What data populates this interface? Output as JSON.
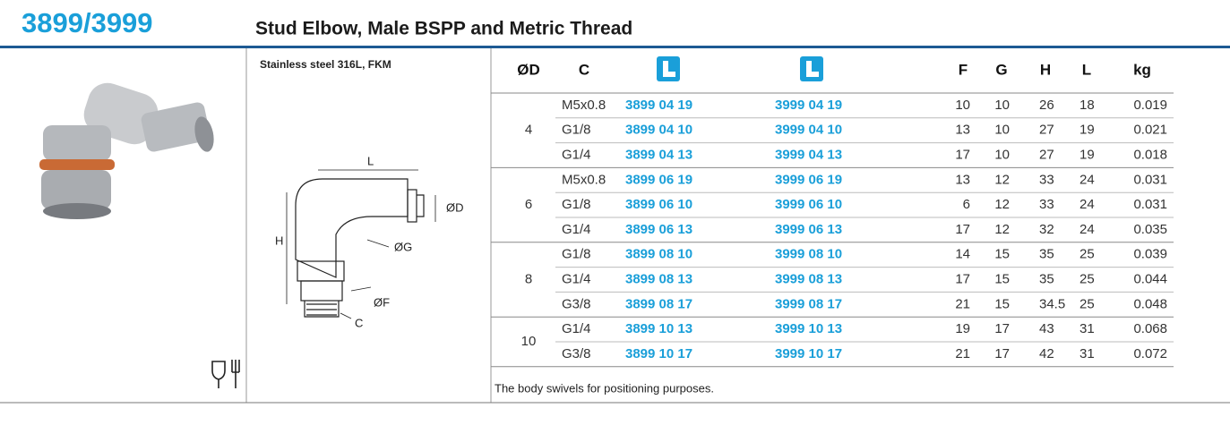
{
  "header": {
    "title": "3899/3999",
    "subtitle": "Stud Elbow, Male BSPP and Metric Thread"
  },
  "material": "Stainless steel 316L, FKM",
  "diagram": {
    "l": "L",
    "d": "ØD",
    "h": "H",
    "g": "ØG",
    "f": "ØF",
    "c": "C"
  },
  "table": {
    "columns": [
      "ØD",
      "C",
      "F",
      "G",
      "H",
      "L",
      "kg"
    ],
    "groups": [
      {
        "od": "4",
        "rows": [
          [
            "M5x0.8",
            "3899 04 19",
            "3999 04 19",
            "10",
            "10",
            "26",
            "18",
            "0.019"
          ],
          [
            "G1/8",
            "3899 04 10",
            "3999 04 10",
            "13",
            "10",
            "27",
            "19",
            "0.021"
          ],
          [
            "G1/4",
            "3899 04 13",
            "3999 04 13",
            "17",
            "10",
            "27",
            "19",
            "0.018"
          ]
        ]
      },
      {
        "od": "6",
        "rows": [
          [
            "M5x0.8",
            "3899 06 19",
            "3999 06 19",
            "13",
            "12",
            "33",
            "24",
            "0.031"
          ],
          [
            "G1/8",
            "3899 06 10",
            "3999 06 10",
            "6",
            "12",
            "33",
            "24",
            "0.031"
          ],
          [
            "G1/4",
            "3899 06 13",
            "3999 06 13",
            "17",
            "12",
            "32",
            "24",
            "0.035"
          ]
        ]
      },
      {
        "od": "8",
        "rows": [
          [
            "G1/8",
            "3899 08 10",
            "3999 08 10",
            "14",
            "15",
            "35",
            "25",
            "0.039"
          ],
          [
            "G1/4",
            "3899 08 13",
            "3999 08 13",
            "17",
            "15",
            "35",
            "25",
            "0.044"
          ],
          [
            "G3/8",
            "3899 08 17",
            "3999 08 17",
            "21",
            "15",
            "34.5",
            "25",
            "0.048"
          ]
        ]
      },
      {
        "od": "10",
        "rows": [
          [
            "G1/4",
            "3899 10 13",
            "3999 10 13",
            "19",
            "17",
            "43",
            "31",
            "0.068"
          ],
          [
            "G3/8",
            "3899 10 17",
            "3999 10 17",
            "21",
            "17",
            "42",
            "31",
            "0.072"
          ]
        ]
      }
    ],
    "footnote": "The body swivels for positioning purposes."
  }
}
